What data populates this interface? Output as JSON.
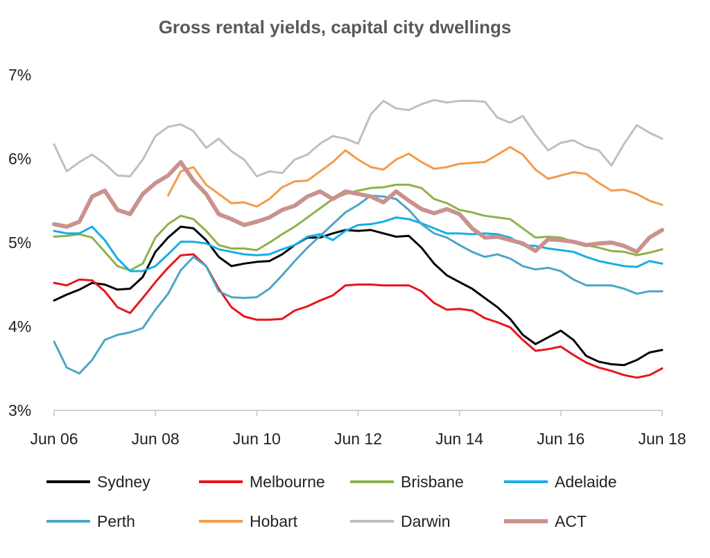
{
  "chart_data": {
    "type": "line",
    "title": "Gross rental yields, capital city dwellings",
    "xlabel": "",
    "ylabel": "",
    "ylim": [
      3,
      7
    ],
    "y_ticks": [
      "3%",
      "4%",
      "5%",
      "6%",
      "7%"
    ],
    "y_tick_values": [
      3,
      4,
      5,
      6,
      7
    ],
    "x_ticks": [
      "Jun 06",
      "Jun 08",
      "Jun 10",
      "Jun 12",
      "Jun 14",
      "Jun 16",
      "Jun 18"
    ],
    "x_tick_values": [
      "2006-06",
      "2008-06",
      "2010-06",
      "2012-06",
      "2014-06",
      "2016-06",
      "2018-06"
    ],
    "grid": false,
    "legend_position": "bottom",
    "x": [
      "2006-06",
      "2006-09",
      "2006-12",
      "2007-03",
      "2007-06",
      "2007-09",
      "2007-12",
      "2008-03",
      "2008-06",
      "2008-09",
      "2008-12",
      "2009-03",
      "2009-06",
      "2009-09",
      "2009-12",
      "2010-03",
      "2010-06",
      "2010-09",
      "2010-12",
      "2011-03",
      "2011-06",
      "2011-09",
      "2011-12",
      "2012-03",
      "2012-06",
      "2012-09",
      "2012-12",
      "2013-03",
      "2013-06",
      "2013-09",
      "2013-12",
      "2014-03",
      "2014-06",
      "2014-09",
      "2014-12",
      "2015-03",
      "2015-06",
      "2015-09",
      "2015-12",
      "2016-03",
      "2016-06",
      "2016-09",
      "2016-12",
      "2017-03",
      "2017-06",
      "2017-09",
      "2017-12",
      "2018-03",
      "2018-06"
    ],
    "series": [
      {
        "name": "Sydney",
        "color": "#000000",
        "values": [
          4.31,
          4.38,
          4.44,
          4.52,
          4.5,
          4.44,
          4.45,
          4.59,
          4.89,
          5.06,
          5.19,
          5.17,
          5.03,
          4.83,
          4.72,
          4.75,
          4.77,
          4.78,
          4.86,
          4.97,
          5.06,
          5.06,
          5.11,
          5.15,
          5.14,
          5.15,
          5.11,
          5.07,
          5.08,
          4.94,
          4.75,
          4.61,
          4.53,
          4.45,
          4.34,
          4.23,
          4.09,
          3.9,
          3.79,
          3.87,
          3.95,
          3.84,
          3.65,
          3.58,
          3.55,
          3.54,
          3.6,
          3.69,
          3.72
        ]
      },
      {
        "name": "Melbourne",
        "color": "#e8141b",
        "values": [
          4.52,
          4.49,
          4.56,
          4.55,
          4.42,
          4.23,
          4.16,
          4.34,
          4.53,
          4.7,
          4.85,
          4.86,
          4.72,
          4.45,
          4.23,
          4.12,
          4.08,
          4.08,
          4.09,
          4.19,
          4.24,
          4.31,
          4.37,
          4.49,
          4.5,
          4.5,
          4.49,
          4.49,
          4.49,
          4.42,
          4.28,
          4.2,
          4.21,
          4.19,
          4.1,
          4.05,
          3.99,
          3.84,
          3.71,
          3.73,
          3.76,
          3.66,
          3.57,
          3.51,
          3.47,
          3.42,
          3.39,
          3.42,
          3.5
        ]
      },
      {
        "name": "Brisbane",
        "color": "#8cb24a",
        "values": [
          5.07,
          5.08,
          5.1,
          5.06,
          4.89,
          4.72,
          4.67,
          4.75,
          5.06,
          5.22,
          5.32,
          5.28,
          5.14,
          4.97,
          4.93,
          4.93,
          4.91,
          5.0,
          5.1,
          5.19,
          5.3,
          5.41,
          5.52,
          5.58,
          5.62,
          5.65,
          5.66,
          5.69,
          5.69,
          5.65,
          5.52,
          5.47,
          5.39,
          5.36,
          5.32,
          5.3,
          5.28,
          5.17,
          5.06,
          5.07,
          5.06,
          5.01,
          4.97,
          4.94,
          4.9,
          4.89,
          4.85,
          4.88,
          4.92
        ]
      },
      {
        "name": "Adelaide",
        "color": "#14aee6",
        "values": [
          5.14,
          5.11,
          5.11,
          5.19,
          5.03,
          4.81,
          4.66,
          4.66,
          4.72,
          4.86,
          5.01,
          5.01,
          4.99,
          4.92,
          4.89,
          4.86,
          4.85,
          4.86,
          4.92,
          4.97,
          5.07,
          5.1,
          5.03,
          5.14,
          5.21,
          5.22,
          5.25,
          5.3,
          5.28,
          5.23,
          5.17,
          5.11,
          5.11,
          5.1,
          5.11,
          5.1,
          5.06,
          4.97,
          4.96,
          4.93,
          4.91,
          4.89,
          4.83,
          4.78,
          4.75,
          4.72,
          4.71,
          4.78,
          4.75
        ]
      },
      {
        "name": "Perth",
        "color": "#4ba6c4",
        "values": [
          3.82,
          3.51,
          3.44,
          3.6,
          3.84,
          3.9,
          3.93,
          3.98,
          4.2,
          4.39,
          4.67,
          4.83,
          4.72,
          4.42,
          4.35,
          4.34,
          4.35,
          4.45,
          4.61,
          4.78,
          4.94,
          5.08,
          5.22,
          5.36,
          5.45,
          5.56,
          5.55,
          5.52,
          5.39,
          5.22,
          5.11,
          5.06,
          4.97,
          4.89,
          4.83,
          4.86,
          4.81,
          4.72,
          4.68,
          4.7,
          4.66,
          4.56,
          4.49,
          4.49,
          4.49,
          4.45,
          4.39,
          4.42,
          4.42
        ]
      },
      {
        "name": "Hobart",
        "color": "#f59a4a",
        "values": [
          null,
          null,
          null,
          null,
          null,
          null,
          null,
          null,
          null,
          5.56,
          5.85,
          5.9,
          5.69,
          5.58,
          5.47,
          5.48,
          5.43,
          5.52,
          5.66,
          5.73,
          5.74,
          5.85,
          5.96,
          6.1,
          5.99,
          5.9,
          5.87,
          5.99,
          6.06,
          5.96,
          5.88,
          5.9,
          5.94,
          5.95,
          5.96,
          6.05,
          6.14,
          6.05,
          5.87,
          5.76,
          5.8,
          5.84,
          5.82,
          5.71,
          5.62,
          5.63,
          5.58,
          5.5,
          5.45
        ]
      },
      {
        "name": "Darwin",
        "color": "#bfbfbf",
        "values": [
          6.17,
          5.85,
          5.96,
          6.05,
          5.94,
          5.8,
          5.79,
          5.99,
          6.27,
          6.38,
          6.41,
          6.33,
          6.13,
          6.24,
          6.09,
          5.99,
          5.79,
          5.85,
          5.83,
          5.99,
          6.05,
          6.18,
          6.27,
          6.24,
          6.18,
          6.53,
          6.69,
          6.6,
          6.58,
          6.65,
          6.7,
          6.67,
          6.69,
          6.69,
          6.68,
          6.49,
          6.43,
          6.51,
          6.29,
          6.1,
          6.19,
          6.22,
          6.14,
          6.1,
          5.92,
          6.18,
          6.4,
          6.31,
          6.24
        ]
      },
      {
        "name": "ACT",
        "color": "#c9928e",
        "values": [
          5.22,
          5.19,
          5.25,
          5.55,
          5.62,
          5.39,
          5.34,
          5.58,
          5.71,
          5.8,
          5.96,
          5.74,
          5.58,
          5.34,
          5.28,
          5.21,
          5.25,
          5.3,
          5.39,
          5.44,
          5.55,
          5.61,
          5.52,
          5.61,
          5.58,
          5.55,
          5.48,
          5.61,
          5.5,
          5.4,
          5.35,
          5.4,
          5.34,
          5.17,
          5.06,
          5.07,
          5.03,
          4.99,
          4.9,
          5.04,
          5.03,
          5.01,
          4.97,
          4.99,
          5.0,
          4.96,
          4.89,
          5.06,
          5.15
        ]
      }
    ]
  }
}
